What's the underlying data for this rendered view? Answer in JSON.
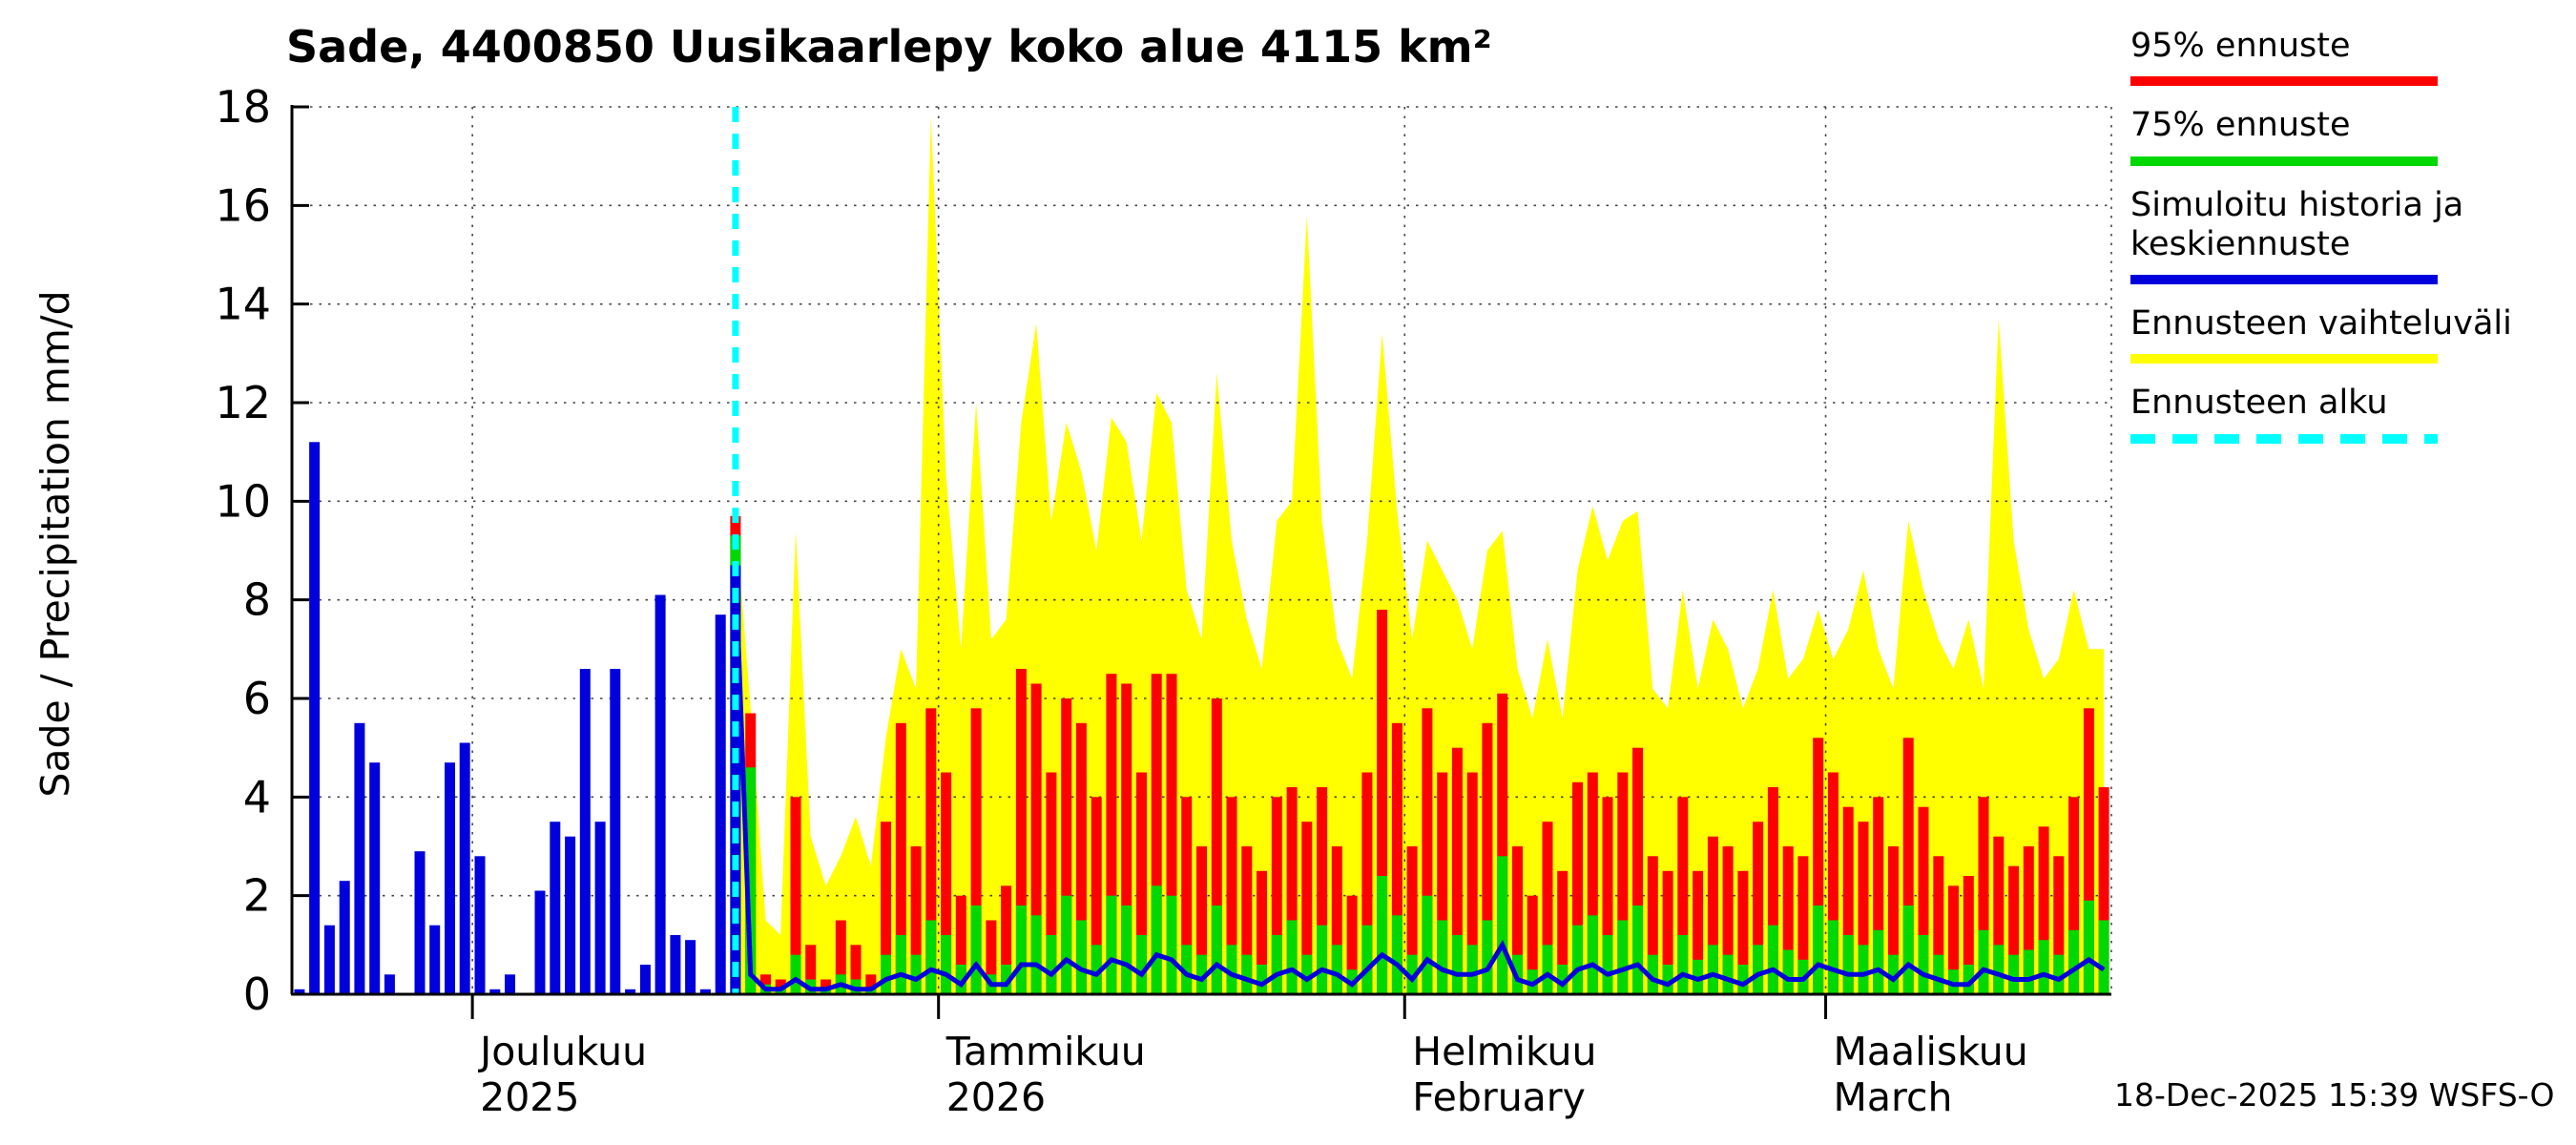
{
  "footer": {
    "timestamp": "18-Dec-2025 15:39 WSFS-O"
  },
  "legend": {
    "items": [
      {
        "label": "95% ennuste",
        "color": "#ff0000",
        "style": "solid"
      },
      {
        "label": "75% ennuste",
        "color": "#00d800",
        "style": "solid"
      },
      {
        "label": "Simuloitu historia ja keskiennuste",
        "color": "#0000dd",
        "style": "solid"
      },
      {
        "label": "Ennusteen vaihteluväli",
        "color": "#ffff00",
        "style": "solid"
      },
      {
        "label": "Ennusteen alku",
        "color": "#00ffff",
        "style": "dashed"
      }
    ]
  },
  "chart_data": {
    "type": "composite",
    "title": "Sade, 4400850 Uusikaarlepy koko alue 4115 km²",
    "ylabel": "Sade / Precipitation   mm/d",
    "ylim": [
      0,
      18
    ],
    "yticks": [
      0,
      2,
      4,
      6,
      8,
      10,
      12,
      14,
      16,
      18
    ],
    "grid": "dotted",
    "legend_position": "top-right",
    "x_axis": {
      "total_days": 121,
      "months": [
        {
          "label": "Joulukuu",
          "sub": "2025",
          "day_index": 12
        },
        {
          "label": "Tammikuu",
          "sub": "2026",
          "day_index": 43
        },
        {
          "label": "Helmikuu",
          "sub": "February",
          "day_index": 74
        },
        {
          "label": "Maaliskuu",
          "sub": "March",
          "day_index": 102
        }
      ]
    },
    "forecast_start_index": 29,
    "history": [
      0.1,
      11.2,
      1.4,
      2.3,
      5.5,
      4.7,
      0.4,
      0,
      2.9,
      1.4,
      4.7,
      5.1,
      2.8,
      0.1,
      0.4,
      0,
      2.1,
      3.5,
      3.2,
      6.6,
      3.5,
      6.6,
      0.1,
      0.6,
      8.1,
      1.2,
      1.1,
      0.1,
      7.7,
      8.7
    ],
    "forecast": {
      "p95": [
        9.7,
        5.7,
        0.4,
        0.3,
        4.0,
        1.0,
        0.3,
        1.5,
        1.0,
        0.4,
        3.5,
        5.5,
        3.0,
        5.8,
        4.5,
        2.0,
        5.8,
        1.5,
        2.2,
        6.6,
        6.3,
        4.5,
        6.0,
        5.5,
        4.0,
        6.5,
        6.3,
        4.5,
        6.5,
        6.5,
        4.0,
        3.0,
        6.0,
        4.0,
        3.0,
        2.5,
        4.0,
        4.2,
        3.5,
        4.2,
        3.0,
        2.0,
        4.5,
        7.8,
        5.5,
        3.0,
        5.8,
        4.5,
        5.0,
        4.5,
        5.5,
        6.1,
        3.0,
        2.0,
        3.5,
        2.5,
        4.3,
        4.5,
        4.0,
        4.5,
        5.0,
        2.8,
        2.5,
        4.0,
        2.5,
        3.2,
        3.0,
        2.5,
        3.5,
        4.2,
        3.0,
        2.8,
        5.2,
        4.5,
        3.8,
        3.5,
        4.0,
        3.0,
        5.2,
        3.8,
        2.8,
        2.2,
        2.4,
        4.0,
        3.2,
        2.6,
        3.0,
        3.4,
        2.8,
        4.0,
        5.8,
        4.2
      ],
      "p75": [
        9.3,
        4.6,
        0.2,
        0.1,
        0.8,
        0.3,
        0.1,
        0.4,
        0.3,
        0.1,
        0.8,
        1.2,
        0.8,
        1.5,
        1.2,
        0.6,
        1.8,
        0.4,
        0.6,
        1.8,
        1.6,
        1.2,
        2.0,
        1.5,
        1.0,
        2.0,
        1.8,
        1.2,
        2.2,
        2.0,
        1.0,
        0.8,
        1.8,
        1.0,
        0.8,
        0.6,
        1.2,
        1.5,
        0.8,
        1.4,
        1.0,
        0.5,
        1.4,
        2.4,
        1.6,
        0.8,
        2.0,
        1.5,
        1.2,
        1.0,
        1.5,
        2.8,
        0.8,
        0.5,
        1.0,
        0.6,
        1.4,
        1.6,
        1.2,
        1.5,
        1.8,
        0.8,
        0.6,
        1.2,
        0.7,
        1.0,
        0.8,
        0.6,
        1.0,
        1.4,
        0.9,
        0.7,
        1.8,
        1.5,
        1.2,
        1.0,
        1.3,
        0.8,
        1.8,
        1.2,
        0.8,
        0.5,
        0.6,
        1.3,
        1.0,
        0.8,
        0.9,
        1.1,
        0.8,
        1.3,
        1.9,
        1.5
      ],
      "median": [
        8.7,
        0.4,
        0.1,
        0.1,
        0.3,
        0.1,
        0.1,
        0.2,
        0.1,
        0.1,
        0.3,
        0.4,
        0.3,
        0.5,
        0.4,
        0.2,
        0.6,
        0.2,
        0.2,
        0.6,
        0.6,
        0.4,
        0.7,
        0.5,
        0.4,
        0.7,
        0.6,
        0.4,
        0.8,
        0.7,
        0.4,
        0.3,
        0.6,
        0.4,
        0.3,
        0.2,
        0.4,
        0.5,
        0.3,
        0.5,
        0.4,
        0.2,
        0.5,
        0.8,
        0.6,
        0.3,
        0.7,
        0.5,
        0.4,
        0.4,
        0.5,
        1.0,
        0.3,
        0.2,
        0.4,
        0.2,
        0.5,
        0.6,
        0.4,
        0.5,
        0.6,
        0.3,
        0.2,
        0.4,
        0.3,
        0.4,
        0.3,
        0.2,
        0.4,
        0.5,
        0.3,
        0.3,
        0.6,
        0.5,
        0.4,
        0.4,
        0.5,
        0.3,
        0.6,
        0.4,
        0.3,
        0.2,
        0.2,
        0.5,
        0.4,
        0.3,
        0.3,
        0.4,
        0.3,
        0.5,
        0.7,
        0.5
      ],
      "band_upper": [
        9.7,
        5.8,
        1.5,
        1.2,
        9.4,
        3.2,
        2.2,
        2.8,
        3.6,
        2.6,
        5.2,
        7.0,
        6.2,
        17.8,
        10.5,
        7.0,
        12.0,
        7.2,
        7.6,
        11.6,
        13.6,
        9.6,
        11.6,
        10.6,
        9.0,
        11.7,
        11.2,
        9.2,
        12.2,
        11.6,
        8.2,
        7.2,
        12.6,
        9.2,
        7.6,
        6.6,
        9.6,
        10.0,
        15.8,
        9.6,
        7.2,
        6.4,
        9.2,
        13.4,
        9.8,
        7.2,
        9.2,
        8.6,
        8.0,
        7.0,
        9.0,
        9.4,
        6.6,
        5.6,
        7.2,
        5.6,
        8.6,
        9.9,
        8.8,
        9.6,
        9.8,
        6.2,
        5.8,
        8.2,
        6.2,
        7.6,
        7.0,
        5.8,
        6.6,
        8.2,
        6.4,
        6.8,
        7.8,
        6.8,
        7.4,
        8.6,
        7.0,
        6.2,
        9.6,
        8.2,
        7.2,
        6.6,
        7.6,
        6.2,
        13.7,
        9.2,
        7.4,
        6.4,
        6.8,
        8.2,
        7.0,
        7.0
      ]
    },
    "colors": {
      "p95": "#ff0000",
      "p75": "#00d800",
      "history": "#0000dd",
      "band": "#ffff00",
      "start": "#00ffff"
    }
  }
}
